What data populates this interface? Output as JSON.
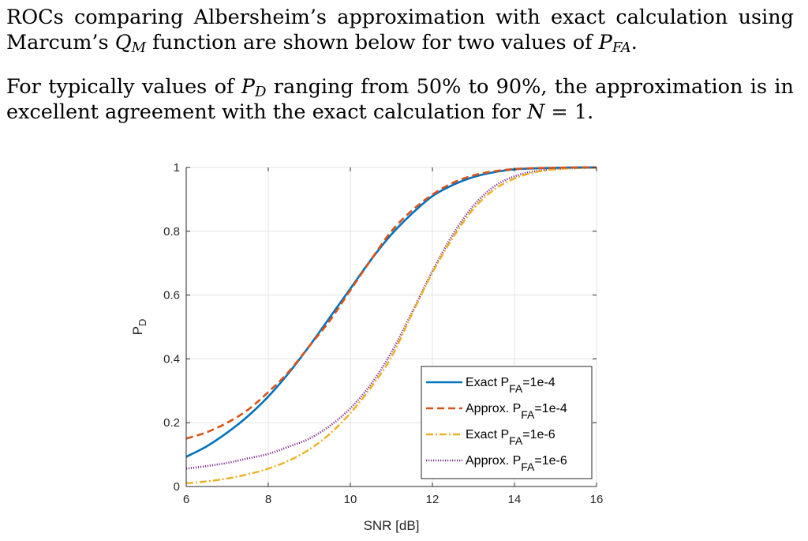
{
  "text": {
    "p1": {
      "a": "ROCs comparing Albersheim’s approximation with exact calculation using Marcum’s ",
      "q": "Q",
      "q_sub": "M",
      "b": " function are shown below for two values of ",
      "p": "P",
      "p_sub": "FA",
      "c": "."
    },
    "p2": {
      "a": "For typically values of ",
      "p": "P",
      "p_sub": "D",
      "b": " ranging from 50% to 90%, the approximation is in excellent agreement with the exact calculation for ",
      "n": "N",
      "c": " = 1."
    }
  },
  "chart_data": {
    "type": "line",
    "xlabel": "SNR [dB]",
    "ylabel_main": "P",
    "ylabel_sub": "D",
    "xlim": [
      6,
      16
    ],
    "ylim": [
      0,
      1
    ],
    "xticks": [
      6,
      8,
      10,
      12,
      14,
      16
    ],
    "yticks": [
      0,
      0.2,
      0.4,
      0.6,
      0.8,
      1
    ],
    "ytick_labels": [
      "0",
      "0.2",
      "0.4",
      "0.6",
      "0.8",
      "1"
    ],
    "grid": true,
    "legend_position": "bottom-right",
    "x": [
      6,
      6.5,
      7,
      7.5,
      8,
      8.5,
      9,
      9.5,
      10,
      10.5,
      11,
      11.5,
      12,
      12.5,
      13,
      13.5,
      14,
      14.5,
      15,
      15.5,
      16
    ],
    "series": [
      {
        "name": "Exact P",
        "name_sub": "FA",
        "name_suffix": "=1e-4",
        "color": "#0072BD",
        "dash": "solid",
        "values": [
          0.093,
          0.126,
          0.169,
          0.22,
          0.282,
          0.356,
          0.44,
          0.53,
          0.62,
          0.71,
          0.79,
          0.855,
          0.91,
          0.945,
          0.97,
          0.985,
          0.994,
          0.997,
          0.999,
          1.0,
          1.0
        ]
      },
      {
        "name": "Approx. P",
        "name_sub": "FA",
        "name_suffix": "=1e-4",
        "color": "#D95319",
        "dash": "dashed",
        "values": [
          0.15,
          0.17,
          0.2,
          0.24,
          0.296,
          0.36,
          0.44,
          0.52,
          0.615,
          0.71,
          0.8,
          0.865,
          0.915,
          0.952,
          0.975,
          0.988,
          0.995,
          0.998,
          0.999,
          1.0,
          1.0
        ]
      },
      {
        "name": "Exact P",
        "name_sub": "FA",
        "name_suffix": "=1e-6",
        "color": "#EDB120",
        "dash": "dashdot",
        "values": [
          0.01,
          0.016,
          0.025,
          0.038,
          0.056,
          0.081,
          0.116,
          0.165,
          0.23,
          0.31,
          0.405,
          0.54,
          0.67,
          0.78,
          0.87,
          0.93,
          0.965,
          0.985,
          0.994,
          0.998,
          0.999
        ]
      },
      {
        "name": "Approx. P",
        "name_sub": "FA",
        "name_suffix": "=1e-6",
        "color": "#7E2F8E",
        "dash": "dotted",
        "values": [
          0.056,
          0.064,
          0.074,
          0.088,
          0.102,
          0.125,
          0.15,
          0.19,
          0.245,
          0.32,
          0.42,
          0.545,
          0.675,
          0.79,
          0.88,
          0.94,
          0.972,
          0.988,
          0.995,
          0.998,
          1.0
        ]
      }
    ]
  }
}
